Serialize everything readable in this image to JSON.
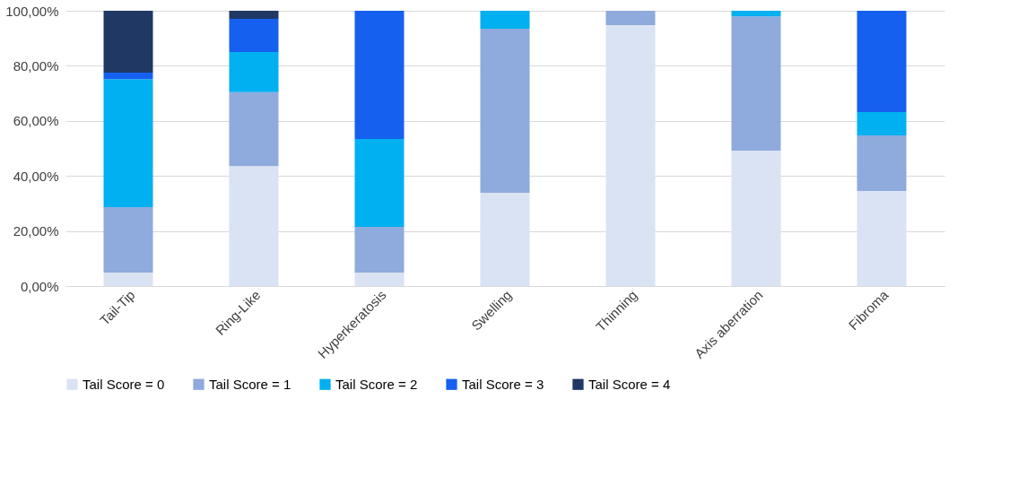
{
  "chart_data": {
    "type": "bar",
    "stacked": true,
    "categories": [
      "Tail-Tip",
      "Ring-Like",
      "Hyperkeratosis",
      "Swelling",
      "Thinning",
      "Axis aberration",
      "Fibroma"
    ],
    "series": [
      {
        "name": "Tail Score = 0",
        "color": "#dae3f3",
        "values": [
          4.9,
          43.6,
          4.9,
          33.9,
          94.8,
          49.2,
          34.5
        ]
      },
      {
        "name": "Tail Score = 1",
        "color": "#8faadc",
        "values": [
          23.8,
          26.8,
          16.6,
          59.6,
          5.2,
          48.8,
          20.2
        ]
      },
      {
        "name": "Tail Score = 2",
        "color": "#00b0f0",
        "values": [
          46.5,
          14.6,
          31.9,
          6.5,
          0,
          2.0,
          8.5
        ]
      },
      {
        "name": "Tail Score = 3",
        "color": "#1660f0",
        "values": [
          2.3,
          12.1,
          46.6,
          0,
          0,
          0,
          36.8
        ]
      },
      {
        "name": "Tail Score = 4",
        "color": "#1f3864",
        "values": [
          22.5,
          2.9,
          0,
          0,
          0,
          0,
          0
        ]
      }
    ],
    "ylim": [
      0,
      100
    ],
    "yticks": [
      {
        "value": 0,
        "label": "0,00%"
      },
      {
        "value": 20,
        "label": "20,00%"
      },
      {
        "value": 40,
        "label": "40,00%"
      },
      {
        "value": 60,
        "label": "60,00%"
      },
      {
        "value": 80,
        "label": "80,00%"
      },
      {
        "value": 100,
        "label": "100,00%"
      }
    ],
    "grid": "y",
    "legend": "bottom"
  }
}
